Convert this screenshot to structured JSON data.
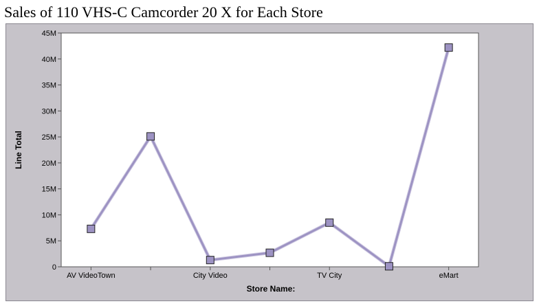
{
  "chart_data": {
    "type": "line",
    "title": "Sales of 110 VHS-C Camcorder 20 X for Each Store",
    "xlabel": "Store Name:",
    "ylabel": "Line Total",
    "ylim": [
      0,
      45000000
    ],
    "yticks": [
      0,
      5000000,
      10000000,
      15000000,
      20000000,
      25000000,
      30000000,
      35000000,
      40000000,
      45000000
    ],
    "ytick_labels": [
      "0",
      "5M",
      "10M",
      "15M",
      "20M",
      "25M",
      "30M",
      "35M",
      "40M",
      "45M"
    ],
    "categories": [
      "AV VideoTown",
      "",
      "City Video",
      "",
      "TV City",
      "",
      "eMart"
    ],
    "series": [
      {
        "values": [
          7300000,
          25100000,
          1300000,
          2700000,
          8500000,
          100000,
          42200000
        ]
      }
    ],
    "grid": false,
    "legend": "none",
    "colors": {
      "line": "#9d93c3",
      "marker": "#9d93c3",
      "frame": "#c6c3c9",
      "plot_bg": "#ffffff"
    }
  }
}
